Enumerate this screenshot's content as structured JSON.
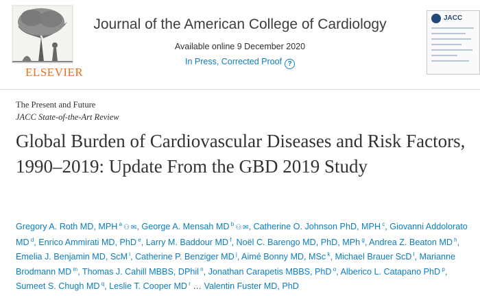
{
  "header": {
    "publisher": "ELSEVIER",
    "journal_title": "Journal of the American College of Cardiology",
    "availability": "Available online 9 December 2020",
    "status_link": "In Press, Corrected Proof",
    "cover_label": "JACC"
  },
  "article": {
    "series_primary": "The Present and Future",
    "series_secondary": "JACC State-of-the-Art Review",
    "title": "Global Burden of Cardiovascular Diseases and Risk Factors, 1990–2019: Update From the GBD 2019 Study",
    "authors": [
      {
        "name": "Gregory A. Roth MD, MPH",
        "sup": "a",
        "person_icon": true,
        "mail_icon": true
      },
      {
        "name": "George A. Mensah MD",
        "sup": "b",
        "person_icon": true,
        "mail_icon": true
      },
      {
        "name": "Catherine O. Johnson PhD, MPH",
        "sup": "c"
      },
      {
        "name": "Giovanni Addolorato MD",
        "sup": "d"
      },
      {
        "name": "Enrico Ammirati MD, PhD",
        "sup": "e"
      },
      {
        "name": "Larry M. Baddour MD",
        "sup": "f"
      },
      {
        "name": "Noël C. Barengo MD, PhD, MPh",
        "sup": "g"
      },
      {
        "name": "Andrea Z. Beaton MD",
        "sup": "h"
      },
      {
        "name": "Emelia J. Benjamin MD, ScM",
        "sup": "i"
      },
      {
        "name": "Catherine P. Benziger MD",
        "sup": "j"
      },
      {
        "name": "Aimé Bonny MD, MSc",
        "sup": "k"
      },
      {
        "name": "Michael Brauer ScD",
        "sup": "l"
      },
      {
        "name": "Marianne Brodmann MD",
        "sup": "m"
      },
      {
        "name": "Thomas J. Cahill MBBS, DPhil",
        "sup": "n"
      },
      {
        "name": "Jonathan Carapetis MBBS, PhD",
        "sup": "o"
      },
      {
        "name": "Alberico L. Catapano PhD",
        "sup": "p"
      },
      {
        "name": "Sumeet S. Chugh MD",
        "sup": "q"
      },
      {
        "name": "Leslie T. Cooper MD",
        "sup": "r"
      },
      {
        "name": "Valentin Fuster MD, PhD",
        "sup": ""
      }
    ],
    "more_authors": "…"
  },
  "colors": {
    "link": "#0c7dbb",
    "publisher_orange": "#e9711c",
    "text": "#2e2e2e"
  }
}
